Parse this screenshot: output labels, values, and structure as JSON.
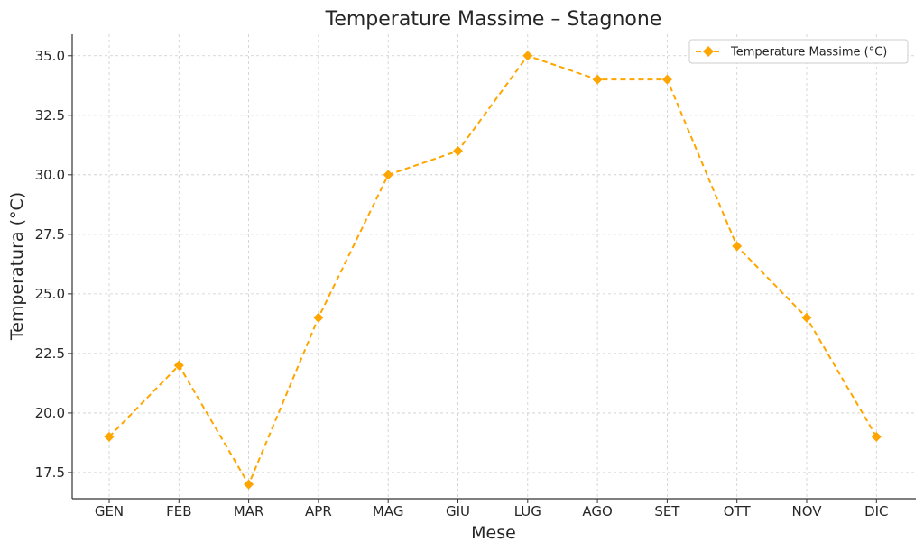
{
  "chart_data": {
    "type": "line",
    "title": "Temperature Massime – Stagnone",
    "xlabel": "Mese",
    "ylabel": "Temperatura (°C)",
    "categories": [
      "GEN",
      "FEB",
      "MAR",
      "APR",
      "MAG",
      "GIU",
      "LUG",
      "AGO",
      "SET",
      "OTT",
      "NOV",
      "DIC"
    ],
    "series": [
      {
        "name": "Temperature Massime (°C)",
        "values": [
          19,
          22,
          17,
          24,
          30,
          31,
          35,
          34,
          34,
          27,
          24,
          19
        ],
        "color": "#FFA500",
        "line_style": "dashed",
        "marker": "diamond"
      }
    ],
    "ylim": [
      16.4,
      35.9
    ],
    "yticks": [
      "17.5",
      "20.0",
      "22.5",
      "25.0",
      "27.5",
      "30.0",
      "32.5",
      "35.0"
    ],
    "grid": true,
    "legend_position": "top-right"
  }
}
